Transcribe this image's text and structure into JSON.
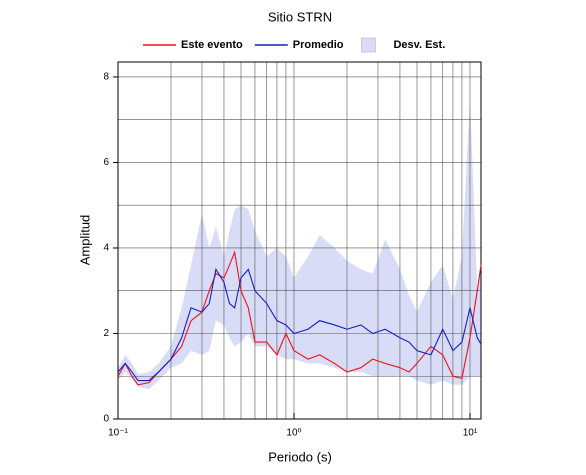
{
  "chart_data": {
    "type": "line",
    "title": "Sitio STRN",
    "xlabel": "Periodo (s)",
    "ylabel": "Amplitud",
    "xscale": "log",
    "grid": true,
    "legend": "top",
    "xlim": [
      0.1,
      11.55
    ],
    "ylim": [
      0,
      8.35
    ],
    "xticks": [
      {
        "value": 0.1,
        "label": "10⁻¹"
      },
      {
        "value": 1,
        "label": "10⁰"
      },
      {
        "value": 10,
        "label": "10¹"
      }
    ],
    "xminor": [
      0.2,
      0.3,
      0.4,
      0.5,
      0.6,
      0.7,
      0.8,
      0.9,
      2,
      3,
      4,
      5,
      6,
      7,
      8,
      9
    ],
    "yticks": [
      0,
      2,
      4,
      6,
      8
    ],
    "yminor": [
      1,
      3,
      5,
      7
    ],
    "x": [
      0.1,
      0.11,
      0.12,
      0.13,
      0.15,
      0.17,
      0.2,
      0.23,
      0.26,
      0.3,
      0.33,
      0.36,
      0.4,
      0.43,
      0.46,
      0.5,
      0.55,
      0.6,
      0.7,
      0.8,
      0.9,
      1.0,
      1.2,
      1.4,
      1.7,
      2.0,
      2.4,
      2.8,
      3.3,
      4,
      4.5,
      5,
      6,
      7,
      8,
      9,
      10,
      11,
      11.55
    ],
    "series": [
      {
        "name": "Este evento",
        "color": "#e8141b",
        "values": [
          1.0,
          1.3,
          1.0,
          0.8,
          0.85,
          1.1,
          1.4,
          1.7,
          2.3,
          2.5,
          3.0,
          3.4,
          3.3,
          3.6,
          3.9,
          3.0,
          2.6,
          1.8,
          1.8,
          1.5,
          2.0,
          1.6,
          1.4,
          1.5,
          1.3,
          1.1,
          1.2,
          1.4,
          1.3,
          1.2,
          1.1,
          1.3,
          1.7,
          1.5,
          1.0,
          0.95,
          1.9,
          3.0,
          3.6
        ]
      },
      {
        "name": "Promedio",
        "color": "#1320c8",
        "values": [
          1.1,
          1.3,
          1.1,
          0.9,
          0.9,
          1.1,
          1.4,
          1.9,
          2.6,
          2.5,
          2.7,
          3.5,
          3.2,
          2.7,
          2.6,
          3.3,
          3.5,
          3.0,
          2.7,
          2.3,
          2.2,
          2.0,
          2.1,
          2.3,
          2.2,
          2.1,
          2.2,
          2.0,
          2.1,
          1.9,
          1.8,
          1.6,
          1.5,
          2.1,
          1.6,
          1.8,
          2.6,
          1.9,
          1.75
        ]
      }
    ],
    "band": {
      "name": "Desv. Est.",
      "color": "#d9dcf7",
      "upper": [
        1.2,
        1.5,
        1.3,
        1.05,
        1.1,
        1.3,
        1.7,
        2.6,
        3.6,
        4.8,
        4.0,
        4.5,
        3.8,
        4.4,
        4.9,
        5.0,
        4.9,
        4.4,
        3.8,
        4.0,
        3.8,
        3.3,
        3.8,
        4.3,
        4.0,
        3.7,
        3.5,
        3.4,
        4.2,
        3.5,
        2.9,
        2.5,
        3.2,
        3.6,
        2.8,
        3.8,
        7.5,
        3.0,
        3.6
      ],
      "lower": [
        0.9,
        1.1,
        0.95,
        0.75,
        0.7,
        0.9,
        1.2,
        1.3,
        1.6,
        1.5,
        1.6,
        2.3,
        2.2,
        1.9,
        1.7,
        1.8,
        2.0,
        1.7,
        1.7,
        1.5,
        1.4,
        1.4,
        1.3,
        1.3,
        1.2,
        1.1,
        1.1,
        1.0,
        1.0,
        1.0,
        1.0,
        0.9,
        0.8,
        0.9,
        0.8,
        0.8,
        1.0,
        1.0,
        1.0
      ]
    }
  }
}
